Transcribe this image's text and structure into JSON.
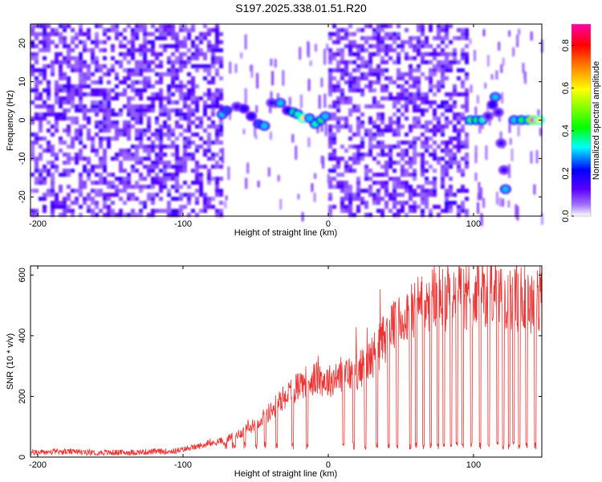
{
  "title": "S197.2025.338.01.51.R20",
  "chart_data": [
    {
      "type": "heatmap",
      "title": "S197.2025.338.01.51.R20",
      "xlabel": "Height of straight line (km)",
      "ylabel": "Frequency (Hz)",
      "xlim": [
        -205,
        147
      ],
      "ylim": [
        -25,
        25
      ],
      "xticks": [
        -200,
        -100,
        0,
        100
      ],
      "yticks": [
        -20,
        -10,
        0,
        10,
        20
      ],
      "xtick_labels": [
        "-200",
        "-100",
        "0",
        "100"
      ],
      "ytick_labels": [
        "-20",
        "-10",
        "0",
        "10",
        "20"
      ],
      "colorbar": {
        "label": "Normalized spectral amplitude",
        "range": [
          0,
          0.9
        ],
        "ticks": [
          0,
          0.2,
          0.4,
          0.6,
          0.8
        ],
        "tick_labels": [
          "0.0",
          "0.2",
          "0.4",
          "0.6",
          "0.8"
        ],
        "colors": [
          "#ffffff",
          "#7f00ff",
          "#0000ff",
          "#00ffff",
          "#00ff00",
          "#ffff00",
          "#ff8000",
          "#ff0000",
          "#ff00aa"
        ]
      },
      "noise_regions": [
        {
          "x": [
            -205,
            -75
          ],
          "level": 0.07
        },
        {
          "x": [
            0,
            96
          ],
          "level": 0.07
        }
      ],
      "signal_track": [
        {
          "x": -73,
          "f": 1.5,
          "a": 0.3
        },
        {
          "x": -70,
          "f": 2.5,
          "a": 0.25
        },
        {
          "x": -63,
          "f": 3.5,
          "a": 0.15
        },
        {
          "x": -58,
          "f": 3,
          "a": 0.2
        },
        {
          "x": -53,
          "f": 1,
          "a": 0.2
        },
        {
          "x": -48,
          "f": -1,
          "a": 0.25
        },
        {
          "x": -44,
          "f": -1.5,
          "a": 0.3
        },
        {
          "x": -39,
          "f": 4.5,
          "a": 0.15
        },
        {
          "x": -33,
          "f": 4.5,
          "a": 0.3
        },
        {
          "x": -28,
          "f": 2.5,
          "a": 0.2
        },
        {
          "x": -24,
          "f": 2,
          "a": 0.4
        },
        {
          "x": -21,
          "f": 1.5,
          "a": 0.35
        },
        {
          "x": -17,
          "f": 0.5,
          "a": 0.6
        },
        {
          "x": -13,
          "f": 0.5,
          "a": 0.3
        },
        {
          "x": -9,
          "f": -1,
          "a": 0.35
        },
        {
          "x": -5,
          "f": 0,
          "a": 0.4
        },
        {
          "x": -2,
          "f": 1,
          "a": 0.3
        },
        {
          "x": 98,
          "f": 0,
          "a": 0.45
        },
        {
          "x": 102,
          "f": 0,
          "a": 0.4
        },
        {
          "x": 106,
          "f": 0,
          "a": 0.35
        },
        {
          "x": 110,
          "f": 1,
          "a": 0.15
        },
        {
          "x": 113,
          "f": 4,
          "a": 0.2
        },
        {
          "x": 115,
          "f": 6,
          "a": 0.3
        },
        {
          "x": 117,
          "f": 2,
          "a": 0.15
        },
        {
          "x": 119,
          "f": -6,
          "a": 0.15
        },
        {
          "x": 121,
          "f": -13,
          "a": 0.15
        },
        {
          "x": 122,
          "f": -18,
          "a": 0.3
        },
        {
          "x": 128,
          "f": 0,
          "a": 0.3
        },
        {
          "x": 133,
          "f": 0,
          "a": 0.4
        },
        {
          "x": 138,
          "f": 0,
          "a": 0.45
        },
        {
          "x": 141,
          "f": 0,
          "a": 0.9
        },
        {
          "x": 145,
          "f": 0,
          "a": 0.6
        }
      ]
    },
    {
      "type": "line",
      "xlabel": "Height of straight line (km)",
      "ylabel": "SNR (10 * v/v)",
      "xlim": [
        -205,
        147
      ],
      "ylim": [
        0,
        630
      ],
      "xticks": [
        -200,
        -100,
        0,
        100
      ],
      "yticks": [
        0,
        200,
        400,
        600
      ],
      "xtick_labels": [
        "-200",
        "-100",
        "0",
        "100"
      ],
      "ytick_labels": [
        "0",
        "200",
        "400",
        "600"
      ],
      "series": [
        {
          "name": "SNR",
          "color": "#ee3333",
          "x": [
            -205,
            -180,
            -160,
            -140,
            -120,
            -105,
            -100,
            -90,
            -80,
            -70,
            -60,
            -50,
            -40,
            -30,
            -20,
            -10,
            0,
            10,
            20,
            30,
            40,
            50,
            60,
            70,
            80,
            90,
            100,
            110,
            120,
            130,
            140,
            147
          ],
          "base": [
            15,
            18,
            15,
            15,
            18,
            20,
            25,
            35,
            45,
            60,
            80,
            110,
            150,
            200,
            240,
            260,
            250,
            270,
            280,
            330,
            400,
            450,
            500,
            520,
            530,
            520,
            540,
            550,
            540,
            520,
            510,
            520
          ],
          "dips": [
            [
              -72,
              -70
            ],
            [
              -66,
              -64
            ],
            [
              -58,
              -57
            ],
            [
              -50,
              -49
            ],
            [
              -44,
              -43
            ],
            [
              -36,
              -35
            ],
            [
              -25,
              -24
            ],
            [
              -15,
              -14
            ],
            [
              10,
              11
            ],
            [
              17,
              18
            ],
            [
              25,
              26
            ],
            [
              33,
              34
            ],
            [
              41,
              42
            ],
            [
              47,
              48
            ],
            [
              56,
              57
            ],
            [
              60,
              61
            ],
            [
              65,
              66
            ],
            [
              70,
              71
            ],
            [
              75,
              76
            ],
            [
              79,
              80
            ],
            [
              84,
              85
            ],
            [
              88,
              89
            ],
            [
              92,
              93
            ],
            [
              98,
              99
            ],
            [
              104,
              105
            ],
            [
              110,
              111
            ],
            [
              116,
              117
            ],
            [
              120,
              121
            ],
            [
              124,
              125
            ],
            [
              127,
              128
            ],
            [
              131,
              132
            ],
            [
              136,
              137
            ],
            [
              142,
              143
            ]
          ]
        }
      ]
    }
  ]
}
